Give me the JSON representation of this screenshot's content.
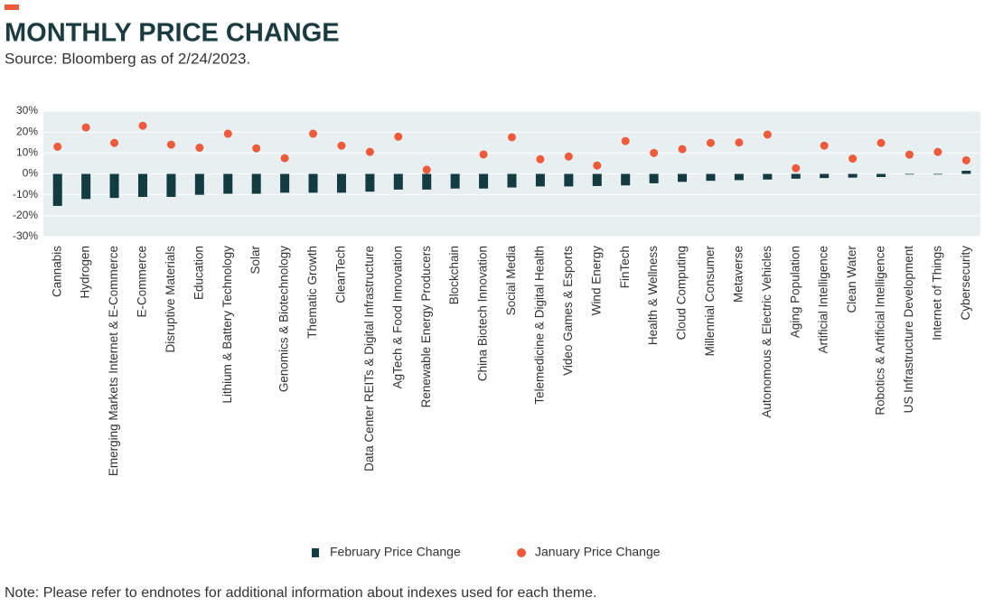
{
  "chart_data": {
    "type": "bar_dot",
    "title": "MONTHLY PRICE CHANGE",
    "subtitle": "Source: Bloomberg as of 2/24/2023.",
    "note": "Note: Please refer to endnotes for additional information about indexes used for each theme.",
    "categories": [
      "Cannabis",
      "Hydrogen",
      "Emerging Markets Internet & E-Commerce",
      "E-Commerce",
      "Disruptive Materials",
      "Education",
      "Lithium & Battery Technology",
      "Solar",
      "Genomics & Biotechnology",
      "Thematic Growth",
      "CleanTech",
      "Data Center REITs & Digital Infrastructure",
      "AgTech & Food Innovation",
      "Renewable Energy Producers",
      "Blockchain",
      "China Biotech Innovation",
      "Social Media",
      "Telemedicine & Digital Health",
      "Video Games & Esports",
      "Wind Energy",
      "FinTech",
      "Health & Wellness",
      "Cloud Computing",
      "Millennial Consumer",
      "Metaverse",
      "Autonomous & Electric Vehicles",
      "Aging Population",
      "Artificial Intelligence",
      "Clean Water",
      "Robotics & Artificial Intelligence",
      "US Infrastructure Development",
      "Internet of Things",
      "Cybersecurity"
    ],
    "series": [
      {
        "name": "February Price Change",
        "color": "#123c41",
        "mark": "bar",
        "values": [
          -15.3,
          -12,
          -11.5,
          -11,
          -11,
          -10,
          -9.5,
          -9.5,
          -9,
          -9,
          -9,
          -8.5,
          -7.5,
          -7.5,
          -7,
          -7,
          -6.5,
          -6,
          -6,
          -5.8,
          -5.5,
          -4.5,
          -3.8,
          -3.3,
          -3,
          -2.7,
          -2.3,
          -2,
          -1.8,
          -1.5,
          -0.3,
          -0.3,
          1.5
        ]
      },
      {
        "name": "January Price Change",
        "color": "#ee5a3a",
        "mark": "dot",
        "values": [
          13,
          22.2,
          14.8,
          23,
          14,
          12.5,
          19.2,
          12.2,
          7.5,
          19.2,
          13.5,
          10.5,
          17.8,
          2,
          null,
          9.3,
          17.5,
          7,
          8.3,
          4,
          15.7,
          10,
          11.8,
          14.8,
          15,
          18.8,
          2.7,
          13.5,
          7.3,
          14.8,
          9.2,
          10.5,
          6.5
        ]
      }
    ],
    "ylim": [
      -30,
      30
    ],
    "yticks": [
      {
        "value": -30,
        "label": "-30%"
      },
      {
        "value": -20,
        "label": "-20%"
      },
      {
        "value": -10,
        "label": "-10%"
      },
      {
        "value": 0,
        "label": "0%"
      },
      {
        "value": 10,
        "label": "10%"
      },
      {
        "value": 20,
        "label": "20%"
      },
      {
        "value": 30,
        "label": "30%"
      }
    ],
    "grid": true
  }
}
